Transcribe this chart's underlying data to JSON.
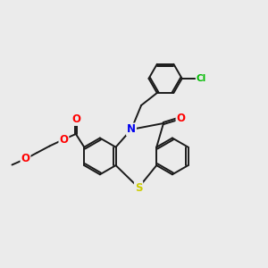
{
  "background_color": "#ebebeb",
  "bond_color": "#1a1a1a",
  "bond_width": 1.4,
  "atom_colors": {
    "O": "#ff0000",
    "N": "#0000ee",
    "S": "#cccc00",
    "Cl": "#00bb00",
    "C": "#1a1a1a"
  },
  "font_size": 7.5,
  "figsize": [
    3.0,
    3.0
  ],
  "dpi": 100,
  "xlim": [
    0,
    10
  ],
  "ylim": [
    0,
    10
  ]
}
